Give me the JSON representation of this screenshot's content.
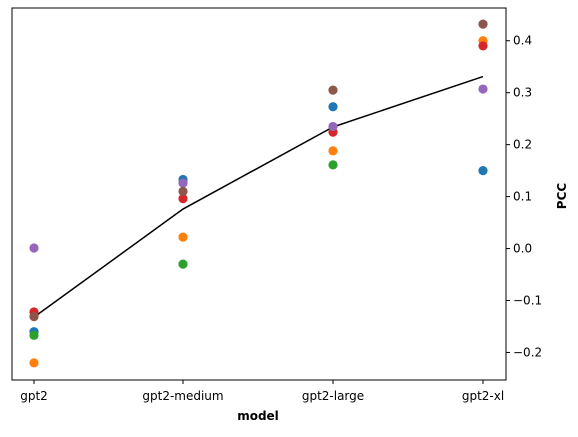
{
  "chart_data": {
    "type": "scatter",
    "xlabel": "model",
    "ylabel": "PCC",
    "title": "",
    "categories": [
      "gpt2",
      "gpt2-medium",
      "gpt2-large",
      "gpt2-xl"
    ],
    "ylim": [
      -0.253,
      0.463
    ],
    "yticks": [
      -0.2,
      -0.1,
      0.0,
      0.1,
      0.2,
      0.3,
      0.4
    ],
    "ytick_labels": [
      "−0.2",
      "−0.1",
      "0.0",
      "0.1",
      "0.2",
      "0.3",
      "0.4"
    ],
    "y_axis_position": "right",
    "grid": false,
    "legend": "none",
    "series": [
      {
        "color": "#1f77b4",
        "values": [
          -0.16,
          0.133,
          0.273,
          0.15
        ]
      },
      {
        "color": "#ff7f0e",
        "values": [
          -0.22,
          0.022,
          0.188,
          0.4
        ]
      },
      {
        "color": "#2ca02c",
        "values": [
          -0.167,
          -0.03,
          0.161,
          null
        ]
      },
      {
        "color": "#d62728",
        "values": [
          -0.122,
          0.096,
          0.224,
          0.39
        ]
      },
      {
        "color": "#9467bd",
        "values": [
          0.001,
          0.126,
          0.235,
          0.307
        ]
      },
      {
        "color": "#8c564b",
        "values": [
          -0.131,
          0.11,
          0.305,
          0.432
        ]
      }
    ],
    "mean_line": {
      "color": "#000000",
      "values": [
        -0.132,
        0.076,
        0.234,
        0.331
      ]
    }
  }
}
